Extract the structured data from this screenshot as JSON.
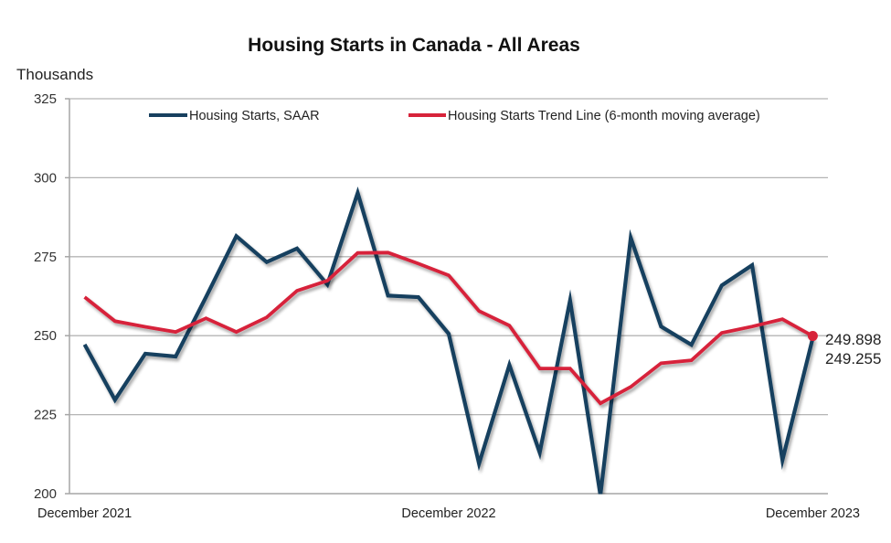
{
  "chart_data": {
    "type": "line",
    "title": "Housing Starts in Canada - All Areas",
    "ylabel": "Thousands",
    "xlabel": "",
    "ylim": [
      200,
      325
    ],
    "yticks": [
      200,
      225,
      250,
      275,
      300,
      325
    ],
    "ytick_labels": [
      "200",
      "225",
      "250",
      "275",
      "300",
      "325"
    ],
    "grid": true,
    "legend_position": "top",
    "x": [
      "Dec 2021",
      "Jan 2022",
      "Feb 2022",
      "Mar 2022",
      "Apr 2022",
      "May 2022",
      "Jun 2022",
      "Jul 2022",
      "Aug 2022",
      "Sep 2022",
      "Oct 2022",
      "Nov 2022",
      "Dec 2022",
      "Jan 2023",
      "Feb 2023",
      "Mar 2023",
      "Apr 2023",
      "May 2023",
      "Jun 2023",
      "Jul 2023",
      "Aug 2023",
      "Sep 2023",
      "Oct 2023",
      "Nov 2023",
      "Dec 2023"
    ],
    "xtick_labels": [
      {
        "index": 0,
        "label": "December 2021"
      },
      {
        "index": 12,
        "label": "December 2022"
      },
      {
        "index": 24,
        "label": "December 2023"
      }
    ],
    "series": [
      {
        "name": "Housing Starts, SAAR",
        "color": "#17405f",
        "values": [
          247.2,
          229.7,
          244.3,
          243.4,
          262.2,
          281.5,
          273.3,
          277.6,
          266.2,
          295.2,
          262.7,
          262.2,
          250.6,
          209.5,
          240.7,
          213.0,
          261.2,
          199.5,
          281.0,
          252.9,
          247.1,
          265.9,
          272.3,
          210.6,
          249.255
        ]
      },
      {
        "name": "Housing Starts Trend Line (6-month moving average)",
        "color": "#d7233a",
        "values": [
          262.2,
          254.6,
          252.8,
          251.2,
          255.5,
          251.2,
          255.8,
          264.2,
          267.4,
          276.2,
          276.3,
          272.8,
          269.1,
          257.8,
          253.2,
          239.6,
          239.6,
          228.6,
          233.8,
          241.3,
          242.2,
          250.9,
          252.9,
          255.2,
          249.898
        ]
      }
    ],
    "end_labels": [
      {
        "series": 1,
        "text": "249.898"
      },
      {
        "series": 0,
        "text": "249.255"
      }
    ]
  }
}
